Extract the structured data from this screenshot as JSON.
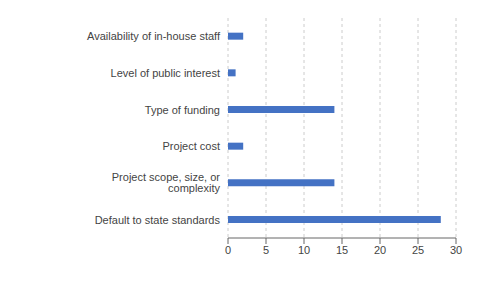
{
  "chart_data": {
    "type": "bar",
    "orientation": "horizontal",
    "categories": [
      "Default to state standards",
      "Project scope, size, or complexity",
      "Project cost",
      "Type of funding",
      "Level of public interest",
      "Availability of in-house staff"
    ],
    "values": [
      28,
      14,
      2,
      14,
      1,
      2
    ],
    "color": "#4472C4",
    "xlim": [
      0,
      30
    ],
    "xticks": [
      0,
      5,
      10,
      15,
      20,
      25,
      30
    ],
    "grid": true
  }
}
